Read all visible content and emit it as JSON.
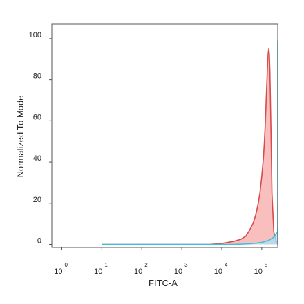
{
  "chart_data": {
    "type": "area",
    "xlabel": "FITC-A",
    "ylabel": "Normalized To Mode",
    "x_scale": "log",
    "xlim": [
      -0.25,
      5.4
    ],
    "ylim": [
      -1.5,
      107
    ],
    "grid": false,
    "legend": "none",
    "yticks": [
      "0",
      "20",
      "40",
      "60",
      "80",
      "100"
    ],
    "ytick_values": [
      0,
      20,
      40,
      60,
      80,
      100
    ],
    "xticks": [
      {
        "base": "10",
        "exp": "0"
      },
      {
        "base": "10",
        "exp": "1"
      },
      {
        "base": "10",
        "exp": "2"
      },
      {
        "base": "10",
        "exp": "3"
      },
      {
        "base": "10",
        "exp": "4"
      },
      {
        "base": "10",
        "exp": "5"
      }
    ],
    "xtick_values": [
      0,
      1,
      2,
      3,
      4,
      5
    ],
    "series": [
      {
        "color": "#f08a8a",
        "fill": "#f7a8a8",
        "stroke": "#d94a4a",
        "x": [
          10,
          500,
          5000,
          10000,
          20000,
          30000,
          40000,
          50000,
          60000,
          70000,
          80000,
          90000,
          100000,
          110000,
          115000,
          120000,
          125000,
          130000,
          135000,
          140000,
          145000,
          150000,
          155000,
          160000,
          170000,
          180000,
          200000,
          225000,
          250000,
          300000
        ],
        "values": [
          0,
          0,
          0,
          0.5,
          1.5,
          2.5,
          4,
          7,
          10,
          14,
          19,
          25,
          33,
          42,
          48,
          55,
          63,
          72,
          80,
          88,
          93,
          95,
          92,
          84,
          55,
          25,
          6,
          2,
          0.5,
          0
        ]
      },
      {
        "color": "#5fc6e8",
        "fill": "#a8e1f5",
        "stroke": "#3cc0e0",
        "x": [
          10,
          5000,
          20000,
          50000,
          100000,
          150000,
          200000,
          250000,
          300000,
          350000,
          380000,
          400000,
          420000,
          440000,
          460000,
          480000,
          500000,
          520000,
          540000,
          560000,
          580000,
          600000,
          625000,
          650000,
          700000,
          750000,
          800000,
          900000,
          1000000,
          1200000,
          250000000
        ],
        "values": [
          0,
          0,
          0,
          0.3,
          1,
          2,
          3.5,
          6,
          12,
          22,
          32,
          42,
          54,
          66,
          78,
          89,
          96,
          99,
          97,
          91,
          82,
          70,
          54,
          40,
          22,
          12,
          6,
          2,
          1,
          0.3,
          0
        ]
      }
    ]
  }
}
